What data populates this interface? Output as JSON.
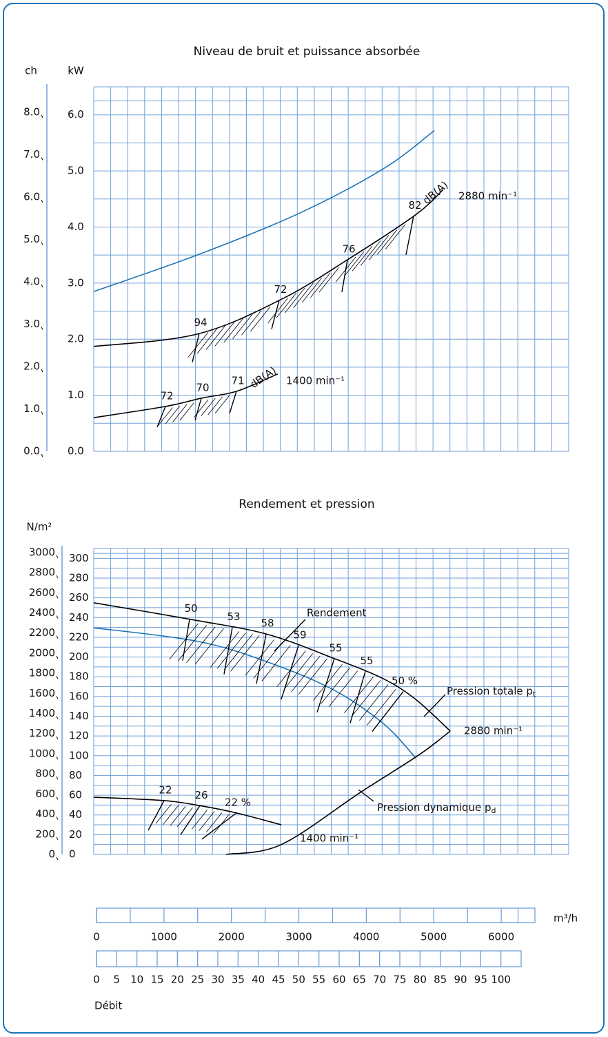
{
  "chart_data": [
    {
      "type": "line",
      "title": "Niveau de bruit et puissance absorbée",
      "y_label": "kW",
      "y2_label": "ch",
      "xlim": [
        0,
        7000
      ],
      "ylim": [
        0,
        6.5
      ],
      "yticks": [
        {
          "value": 0,
          "label": "0.0"
        },
        {
          "value": 1,
          "label": "1.0"
        },
        {
          "value": 2,
          "label": "2.0"
        },
        {
          "value": 3,
          "label": "3.0"
        },
        {
          "value": 4,
          "label": "4.0"
        },
        {
          "value": 5,
          "label": "5.0"
        },
        {
          "value": 6,
          "label": "6.0"
        }
      ],
      "y2lim": [
        0,
        8.6
      ],
      "y2ticks": [
        {
          "value": 0,
          "label": "0.0"
        },
        {
          "value": 1,
          "label": "1.0"
        },
        {
          "value": 2,
          "label": "2.0"
        },
        {
          "value": 3,
          "label": "3.0"
        },
        {
          "value": 4,
          "label": "4.0"
        },
        {
          "value": 5,
          "label": "5.0"
        },
        {
          "value": 6,
          "label": "6.0"
        },
        {
          "value": 7,
          "label": "7.0"
        },
        {
          "value": 8,
          "label": "8.0"
        }
      ],
      "grid": true,
      "series": [
        {
          "color": "#1a73b8",
          "x": [
            0,
            1524,
            3020,
            4270,
            5020
          ],
          "values": [
            2.85,
            3.5,
            4.24,
            5.04,
            5.72
          ]
        },
        {
          "color": "#000000",
          "speed_label": "2880 min⁻¹",
          "x": [
            0,
            1524,
            2764,
            3770,
            4746,
            5152
          ],
          "values": [
            1.87,
            2.09,
            2.71,
            3.44,
            4.22,
            4.67
          ],
          "marker_labels": [
            "94",
            "72",
            "76",
            "82"
          ],
          "marker_unit": "dB(A)"
        },
        {
          "color": "#000000",
          "speed_label": "1400 min⁻¹",
          "x": [
            0,
            1057,
            1595,
            2104,
            2713
          ],
          "values": [
            0.6,
            0.8,
            0.95,
            1.07,
            1.38
          ],
          "marker_labels": [
            "72",
            "70",
            "71"
          ],
          "marker_unit": "dB(A)"
        }
      ]
    },
    {
      "type": "line",
      "title": "Rendement et pression",
      "y2_label": "N/m²",
      "xlim": [
        0,
        7000
      ],
      "ylim": [
        0,
        310
      ],
      "yticks": [
        0,
        20,
        40,
        60,
        80,
        100,
        120,
        140,
        160,
        180,
        200,
        220,
        240,
        260,
        280,
        300
      ],
      "y2lim": [
        0,
        3040
      ],
      "y2ticks": [
        0,
        200,
        400,
        600,
        800,
        1000,
        1200,
        1400,
        1600,
        1800,
        2000,
        2200,
        2400,
        2600,
        2800,
        3000
      ],
      "grid": true,
      "series": [
        {
          "color": "#1a73b8",
          "x": [
            0,
            1524,
            2561,
            3526,
            4268,
            4746
          ],
          "values": [
            229.6,
            216,
            195,
            167,
            132.6,
            97.7
          ]
        },
        {
          "color": "#000000",
          "label": "Pression totale p",
          "label_sub": "t",
          "speed_label": "2880 min⁻¹",
          "x": [
            0,
            1524,
            2561,
            3526,
            4268,
            4746,
            5254
          ],
          "values": [
            255,
            237,
            223,
            199,
            178,
            157,
            125
          ],
          "marker_labels": [
            "50",
            "53",
            "58",
            "59",
            "55",
            "55",
            "50 %"
          ],
          "marker_title": "Rendement"
        },
        {
          "color": "#000000",
          "label": "Pression dynamique p",
          "label_sub": "d",
          "x": [
            1950,
            2765,
            3933,
            4797,
            5254
          ],
          "values": [
            0,
            10,
            63,
            101,
            125
          ]
        },
        {
          "color": "#000000",
          "speed_label": "1400 min⁻¹",
          "x": [
            0,
            1057,
            1595,
            2104,
            2765
          ],
          "values": [
            58,
            54.4,
            49,
            42,
            30
          ],
          "marker_labels": [
            "22",
            "26",
            "22 %"
          ]
        }
      ]
    }
  ],
  "flow_scales": {
    "volume": {
      "unit": "m³/h",
      "lim": [
        0,
        6500
      ],
      "ticks": [
        0,
        1000,
        2000,
        3000,
        4000,
        5000,
        6000
      ]
    },
    "percent": {
      "label": "Débit",
      "lim": [
        0,
        105
      ],
      "ticks": [
        0,
        5,
        10,
        15,
        20,
        25,
        30,
        35,
        40,
        45,
        50,
        55,
        60,
        65,
        70,
        75,
        80,
        85,
        90,
        95,
        100
      ]
    }
  }
}
